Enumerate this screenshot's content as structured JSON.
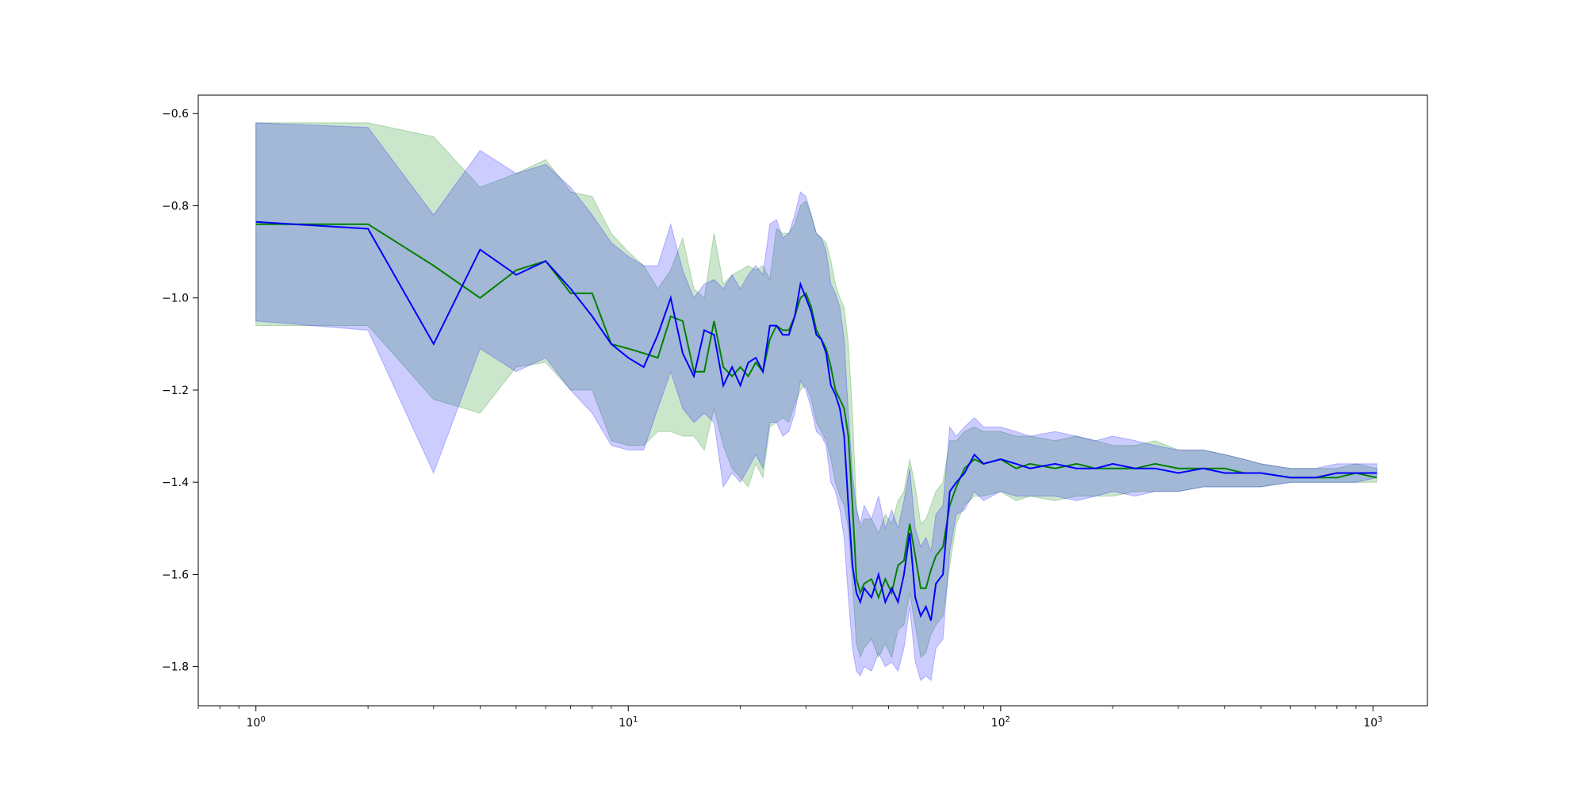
{
  "chart_data": {
    "type": "line",
    "title": "",
    "xlabel": "",
    "ylabel": "",
    "x_scale": "log",
    "xlim": [
      0.7,
      1400
    ],
    "ylim": [
      -1.885,
      -0.56
    ],
    "grid": false,
    "legend": "none",
    "x_ticks": [
      {
        "value": 1,
        "label_base": "10",
        "label_exp": "0"
      },
      {
        "value": 10,
        "label_base": "10",
        "label_exp": "1"
      },
      {
        "value": 100,
        "label_base": "10",
        "label_exp": "2"
      },
      {
        "value": 1000,
        "label_base": "10",
        "label_exp": "3"
      }
    ],
    "y_ticks": [
      {
        "value": -0.6,
        "label": "−0.6"
      },
      {
        "value": -0.8,
        "label": "−0.8"
      },
      {
        "value": -1.0,
        "label": "−1.0"
      },
      {
        "value": -1.2,
        "label": "−1.2"
      },
      {
        "value": -1.4,
        "label": "−1.4"
      },
      {
        "value": -1.6,
        "label": "−1.6"
      },
      {
        "value": -1.8,
        "label": "−1.8"
      }
    ],
    "series": [
      {
        "color": "#008000",
        "band_color": "#008000",
        "band_opacity": 0.2,
        "points": [
          [
            1,
            -0.84,
            -0.62,
            -1.06
          ],
          [
            2,
            -0.84,
            -0.62,
            -1.06
          ],
          [
            3,
            -0.93,
            -0.65,
            -1.22
          ],
          [
            4,
            -1.0,
            -0.76,
            -1.25
          ],
          [
            5,
            -0.94,
            -0.73,
            -1.15
          ],
          [
            6,
            -0.92,
            -0.7,
            -1.14
          ],
          [
            7,
            -0.99,
            -0.77,
            -1.2
          ],
          [
            8,
            -0.99,
            -0.78,
            -1.2
          ],
          [
            9,
            -1.1,
            -0.86,
            -1.31
          ],
          [
            10,
            -1.11,
            -0.9,
            -1.32
          ],
          [
            11,
            -1.12,
            -0.93,
            -1.32
          ],
          [
            12,
            -1.13,
            -0.98,
            -1.29
          ],
          [
            13,
            -1.04,
            -0.94,
            -1.29
          ],
          [
            14,
            -1.05,
            -0.87,
            -1.3
          ],
          [
            15,
            -1.16,
            -0.98,
            -1.3
          ],
          [
            16,
            -1.16,
            -1.0,
            -1.33
          ],
          [
            17,
            -1.05,
            -0.86,
            -1.24
          ],
          [
            18,
            -1.15,
            -0.97,
            -1.32
          ],
          [
            19,
            -1.17,
            -0.95,
            -1.37
          ],
          [
            20,
            -1.15,
            -0.94,
            -1.39
          ],
          [
            21,
            -1.17,
            -0.93,
            -1.41
          ],
          [
            22,
            -1.14,
            -0.94,
            -1.36
          ],
          [
            23,
            -1.16,
            -0.93,
            -1.39
          ],
          [
            24,
            -1.09,
            -0.96,
            -1.28
          ],
          [
            25,
            -1.06,
            -0.85,
            -1.27
          ],
          [
            26,
            -1.07,
            -0.86,
            -1.26
          ],
          [
            27,
            -1.07,
            -0.86,
            -1.27
          ],
          [
            28,
            -1.04,
            -0.84,
            -1.23
          ],
          [
            29,
            -1.0,
            -0.8,
            -1.2
          ],
          [
            30,
            -0.99,
            -0.79,
            -1.19
          ],
          [
            31,
            -1.02,
            -0.82,
            -1.22
          ],
          [
            32,
            -1.07,
            -0.86,
            -1.27
          ],
          [
            33,
            -1.09,
            -0.87,
            -1.29
          ],
          [
            34,
            -1.11,
            -0.88,
            -1.31
          ],
          [
            35,
            -1.15,
            -0.92,
            -1.35
          ],
          [
            36,
            -1.2,
            -0.97,
            -1.4
          ],
          [
            37,
            -1.22,
            -1.0,
            -1.43
          ],
          [
            38,
            -1.24,
            -1.02,
            -1.45
          ],
          [
            39,
            -1.3,
            -1.1,
            -1.5
          ],
          [
            40,
            -1.45,
            -1.25,
            -1.62
          ],
          [
            41,
            -1.61,
            -1.45,
            -1.75
          ],
          [
            42,
            -1.64,
            -1.5,
            -1.78
          ],
          [
            43,
            -1.62,
            -1.48,
            -1.76
          ],
          [
            45,
            -1.61,
            -1.48,
            -1.74
          ],
          [
            47,
            -1.65,
            -1.51,
            -1.78
          ],
          [
            49,
            -1.61,
            -1.47,
            -1.75
          ],
          [
            51,
            -1.64,
            -1.49,
            -1.78
          ],
          [
            53,
            -1.58,
            -1.44,
            -1.72
          ],
          [
            55,
            -1.57,
            -1.42,
            -1.71
          ],
          [
            57,
            -1.49,
            -1.35,
            -1.64
          ],
          [
            59,
            -1.56,
            -1.41,
            -1.71
          ],
          [
            61,
            -1.63,
            -1.49,
            -1.78
          ],
          [
            63,
            -1.63,
            -1.48,
            -1.77
          ],
          [
            65,
            -1.59,
            -1.45,
            -1.73
          ],
          [
            67,
            -1.56,
            -1.42,
            -1.71
          ],
          [
            70,
            -1.54,
            -1.4,
            -1.69
          ],
          [
            73,
            -1.45,
            -1.31,
            -1.58
          ],
          [
            76,
            -1.41,
            -1.31,
            -1.49
          ],
          [
            80,
            -1.37,
            -1.29,
            -1.45
          ],
          [
            85,
            -1.35,
            -1.28,
            -1.43
          ],
          [
            90,
            -1.36,
            -1.29,
            -1.43
          ],
          [
            100,
            -1.35,
            -1.29,
            -1.42
          ],
          [
            110,
            -1.37,
            -1.3,
            -1.44
          ],
          [
            120,
            -1.36,
            -1.3,
            -1.43
          ],
          [
            140,
            -1.37,
            -1.31,
            -1.44
          ],
          [
            160,
            -1.36,
            -1.3,
            -1.43
          ],
          [
            180,
            -1.37,
            -1.31,
            -1.43
          ],
          [
            200,
            -1.37,
            -1.32,
            -1.43
          ],
          [
            230,
            -1.37,
            -1.32,
            -1.42
          ],
          [
            260,
            -1.36,
            -1.31,
            -1.42
          ],
          [
            300,
            -1.37,
            -1.33,
            -1.42
          ],
          [
            350,
            -1.37,
            -1.33,
            -1.41
          ],
          [
            400,
            -1.37,
            -1.34,
            -1.41
          ],
          [
            450,
            -1.38,
            -1.35,
            -1.41
          ],
          [
            500,
            -1.38,
            -1.36,
            -1.41
          ],
          [
            600,
            -1.39,
            -1.37,
            -1.4
          ],
          [
            700,
            -1.39,
            -1.37,
            -1.4
          ],
          [
            800,
            -1.39,
            -1.37,
            -1.4
          ],
          [
            900,
            -1.38,
            -1.36,
            -1.4
          ],
          [
            1024,
            -1.39,
            -1.37,
            -1.4
          ]
        ]
      },
      {
        "color": "#0000ff",
        "band_color": "#0000ff",
        "band_opacity": 0.2,
        "points": [
          [
            1,
            -0.835,
            -0.62,
            -1.05
          ],
          [
            2,
            -0.85,
            -0.63,
            -1.07
          ],
          [
            3,
            -1.1,
            -0.82,
            -1.38
          ],
          [
            4,
            -0.895,
            -0.68,
            -1.11
          ],
          [
            5,
            -0.95,
            -0.73,
            -1.16
          ],
          [
            6,
            -0.92,
            -0.71,
            -1.13
          ],
          [
            7,
            -0.98,
            -0.76,
            -1.2
          ],
          [
            8,
            -1.04,
            -0.82,
            -1.25
          ],
          [
            9,
            -1.1,
            -0.88,
            -1.32
          ],
          [
            10,
            -1.13,
            -0.91,
            -1.33
          ],
          [
            11,
            -1.15,
            -0.93,
            -1.33
          ],
          [
            12,
            -1.08,
            -0.93,
            -1.24
          ],
          [
            13,
            -1.0,
            -0.84,
            -1.16
          ],
          [
            14,
            -1.12,
            -0.94,
            -1.24
          ],
          [
            15,
            -1.17,
            -1.0,
            -1.27
          ],
          [
            16,
            -1.07,
            -0.97,
            -1.25
          ],
          [
            17,
            -1.08,
            -0.96,
            -1.27
          ],
          [
            18,
            -1.19,
            -0.98,
            -1.41
          ],
          [
            19,
            -1.15,
            -0.95,
            -1.38
          ],
          [
            20,
            -1.19,
            -0.98,
            -1.4
          ],
          [
            21,
            -1.14,
            -0.95,
            -1.37
          ],
          [
            22,
            -1.13,
            -0.93,
            -1.34
          ],
          [
            23,
            -1.16,
            -0.95,
            -1.37
          ],
          [
            24,
            -1.06,
            -0.84,
            -1.27
          ],
          [
            25,
            -1.06,
            -0.83,
            -1.27
          ],
          [
            26,
            -1.08,
            -0.87,
            -1.3
          ],
          [
            27,
            -1.08,
            -0.86,
            -1.29
          ],
          [
            28,
            -1.04,
            -0.82,
            -1.25
          ],
          [
            29,
            -0.97,
            -0.77,
            -1.18
          ],
          [
            30,
            -1.0,
            -0.78,
            -1.2
          ],
          [
            31,
            -1.03,
            -0.82,
            -1.24
          ],
          [
            32,
            -1.08,
            -0.86,
            -1.29
          ],
          [
            33,
            -1.09,
            -0.87,
            -1.3
          ],
          [
            34,
            -1.12,
            -0.9,
            -1.32
          ],
          [
            35,
            -1.19,
            -0.97,
            -1.4
          ],
          [
            36,
            -1.21,
            -0.99,
            -1.42
          ],
          [
            37,
            -1.24,
            -1.02,
            -1.46
          ],
          [
            38,
            -1.3,
            -1.09,
            -1.52
          ],
          [
            39,
            -1.45,
            -1.25,
            -1.65
          ],
          [
            40,
            -1.58,
            -1.38,
            -1.76
          ],
          [
            41,
            -1.64,
            -1.46,
            -1.81
          ],
          [
            42,
            -1.66,
            -1.49,
            -1.82
          ],
          [
            43,
            -1.63,
            -1.45,
            -1.8
          ],
          [
            45,
            -1.65,
            -1.48,
            -1.81
          ],
          [
            47,
            -1.6,
            -1.43,
            -1.77
          ],
          [
            49,
            -1.66,
            -1.5,
            -1.8
          ],
          [
            51,
            -1.63,
            -1.46,
            -1.79
          ],
          [
            53,
            -1.66,
            -1.5,
            -1.81
          ],
          [
            55,
            -1.6,
            -1.44,
            -1.76
          ],
          [
            57,
            -1.51,
            -1.37,
            -1.67
          ],
          [
            59,
            -1.65,
            -1.5,
            -1.79
          ],
          [
            61,
            -1.69,
            -1.54,
            -1.83
          ],
          [
            63,
            -1.67,
            -1.52,
            -1.82
          ],
          [
            65,
            -1.7,
            -1.55,
            -1.83
          ],
          [
            67,
            -1.62,
            -1.47,
            -1.76
          ],
          [
            70,
            -1.6,
            -1.45,
            -1.74
          ],
          [
            73,
            -1.42,
            -1.28,
            -1.55
          ],
          [
            76,
            -1.4,
            -1.3,
            -1.47
          ],
          [
            80,
            -1.38,
            -1.28,
            -1.46
          ],
          [
            85,
            -1.34,
            -1.26,
            -1.42
          ],
          [
            90,
            -1.36,
            -1.28,
            -1.44
          ],
          [
            100,
            -1.35,
            -1.28,
            -1.42
          ],
          [
            110,
            -1.36,
            -1.29,
            -1.43
          ],
          [
            120,
            -1.37,
            -1.3,
            -1.43
          ],
          [
            140,
            -1.36,
            -1.29,
            -1.43
          ],
          [
            160,
            -1.37,
            -1.3,
            -1.44
          ],
          [
            180,
            -1.37,
            -1.31,
            -1.43
          ],
          [
            200,
            -1.36,
            -1.3,
            -1.42
          ],
          [
            230,
            -1.37,
            -1.31,
            -1.43
          ],
          [
            260,
            -1.37,
            -1.32,
            -1.42
          ],
          [
            300,
            -1.38,
            -1.33,
            -1.42
          ],
          [
            350,
            -1.37,
            -1.33,
            -1.41
          ],
          [
            400,
            -1.38,
            -1.34,
            -1.41
          ],
          [
            450,
            -1.38,
            -1.35,
            -1.41
          ],
          [
            500,
            -1.38,
            -1.36,
            -1.41
          ],
          [
            600,
            -1.39,
            -1.37,
            -1.4
          ],
          [
            700,
            -1.39,
            -1.37,
            -1.4
          ],
          [
            800,
            -1.38,
            -1.36,
            -1.4
          ],
          [
            900,
            -1.38,
            -1.36,
            -1.4
          ],
          [
            1024,
            -1.38,
            -1.36,
            -1.39
          ]
        ]
      }
    ]
  }
}
